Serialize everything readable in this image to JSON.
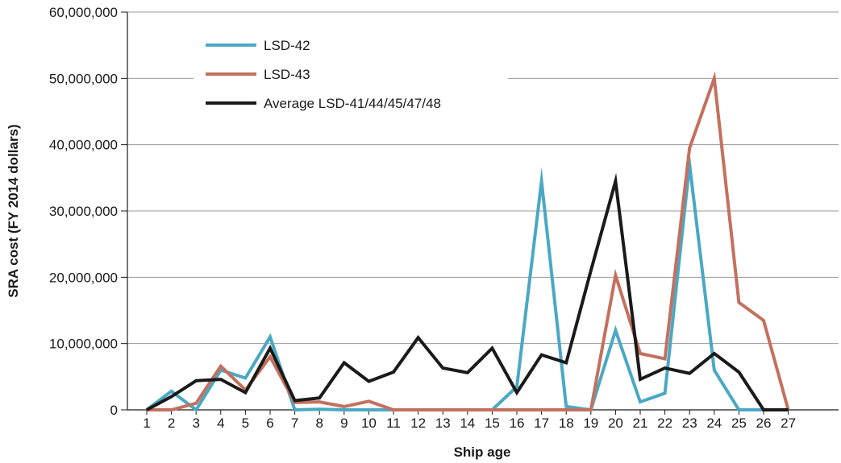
{
  "chart_data": {
    "type": "line",
    "title": "",
    "xlabel": "Ship age",
    "ylabel": "SRA cost (FY 2014 dollars)",
    "x": [
      1,
      2,
      3,
      4,
      5,
      6,
      7,
      8,
      9,
      10,
      11,
      12,
      13,
      14,
      15,
      16,
      17,
      18,
      19,
      20,
      21,
      22,
      23,
      24,
      25,
      26,
      27
    ],
    "x_tick_labels": [
      "1",
      "2",
      "3",
      "4",
      "5",
      "6",
      "7",
      "8",
      "9",
      "10",
      "11",
      "12",
      "13",
      "14",
      "15",
      "16",
      "17",
      "18",
      "19",
      "20",
      "21",
      "22",
      "23",
      "24",
      "25",
      "26",
      "27"
    ],
    "ylim": [
      0,
      60000000
    ],
    "y_ticks": [
      0,
      10000000,
      20000000,
      30000000,
      40000000,
      50000000,
      60000000
    ],
    "y_tick_labels": [
      "0",
      "10,000,000",
      "20,000,000",
      "30,000,000",
      "40,000,000",
      "50,000,000",
      "60,000,000"
    ],
    "grid": "horizontal",
    "legend_position": "top-left",
    "series": [
      {
        "name": "LSD-42",
        "color": "#4aa8c4",
        "values": [
          0,
          2800000,
          0,
          6000000,
          4800000,
          11000000,
          0,
          100000,
          0,
          0,
          0,
          0,
          0,
          0,
          0,
          3500000,
          34500000,
          500000,
          0,
          12000000,
          1200000,
          2500000,
          37000000,
          6000000,
          0,
          0,
          0
        ]
      },
      {
        "name": "LSD-43",
        "color": "#c4705e",
        "values": [
          0,
          0,
          1000000,
          6600000,
          3000000,
          8000000,
          1100000,
          1200000,
          500000,
          1300000,
          0,
          0,
          0,
          0,
          0,
          0,
          0,
          0,
          0,
          20300000,
          8500000,
          7700000,
          39500000,
          50000000,
          16200000,
          13500000,
          0
        ]
      },
      {
        "name": "Average LSD-41/44/45/47/48",
        "color": "#1a1a1a",
        "values": [
          0,
          2000000,
          4400000,
          4600000,
          2600000,
          9300000,
          1400000,
          1800000,
          7100000,
          4300000,
          5700000,
          10900000,
          6300000,
          5600000,
          9300000,
          2600000,
          8300000,
          7100000,
          21000000,
          34500000,
          4600000,
          6300000,
          5500000,
          8500000,
          5700000,
          0,
          0
        ]
      }
    ]
  }
}
